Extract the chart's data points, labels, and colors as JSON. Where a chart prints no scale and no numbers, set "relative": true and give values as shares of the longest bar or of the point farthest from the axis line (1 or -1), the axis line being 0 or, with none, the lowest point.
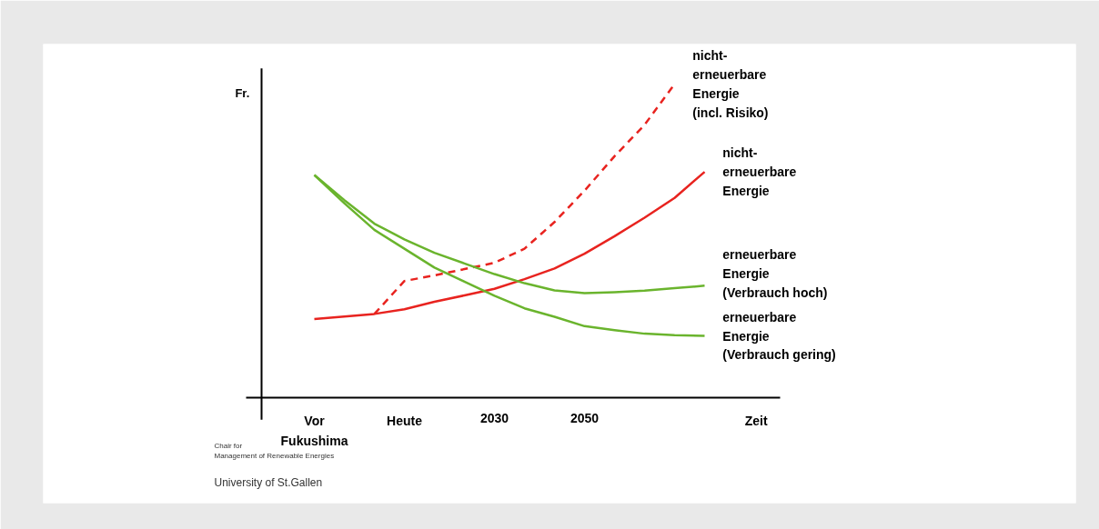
{
  "chart_data": {
    "type": "line",
    "relative": true,
    "xlabel": "Zeit",
    "ylabel": "Fr.",
    "categories": [
      "Vor\nFukushima",
      null,
      null,
      "Heute",
      null,
      null,
      "2030",
      null,
      null,
      "2050",
      null,
      null,
      null,
      null
    ],
    "legend": false,
    "grid": false,
    "marker": "none",
    "series": [
      {
        "name": "nicht-\nerneuerbare\nEnergie\n(incl. Risiko)",
        "color": "#e8231f",
        "line_style": "dashed",
        "values": [
          null,
          null,
          0.267,
          0.372,
          0.39,
          0.41,
          0.43,
          0.475,
          0.56,
          0.66,
          0.77,
          0.87,
          1.0,
          null
        ]
      },
      {
        "name": "nicht-\nerneuerbare\nEnergie",
        "color": "#e8231f",
        "line_style": "solid",
        "values": [
          0.251,
          0.259,
          0.267,
          0.282,
          0.306,
          0.326,
          0.347,
          0.378,
          0.412,
          0.459,
          0.515,
          0.574,
          0.637,
          0.72
        ]
      },
      {
        "name": "erneuerbare\nEnergie\n(Verbrauch hoch)",
        "color": "#6ab42d",
        "line_style": "solid",
        "values": [
          0.71,
          0.63,
          0.555,
          0.505,
          0.462,
          0.428,
          0.394,
          0.365,
          0.342,
          0.333,
          0.336,
          0.341,
          0.349,
          0.357
        ]
      },
      {
        "name": "erneuerbare\nEnergie\n(Verbrauch gering)",
        "color": "#6ab42d",
        "line_style": "solid",
        "values": [
          0.71,
          0.62,
          0.535,
          0.475,
          0.415,
          0.37,
          0.325,
          0.285,
          0.258,
          0.228,
          0.215,
          0.204,
          0.199,
          0.197
        ]
      }
    ],
    "annotations": [
      "Chair for\nManagement of Renewable Energies",
      "University of St.Gallen"
    ]
  }
}
